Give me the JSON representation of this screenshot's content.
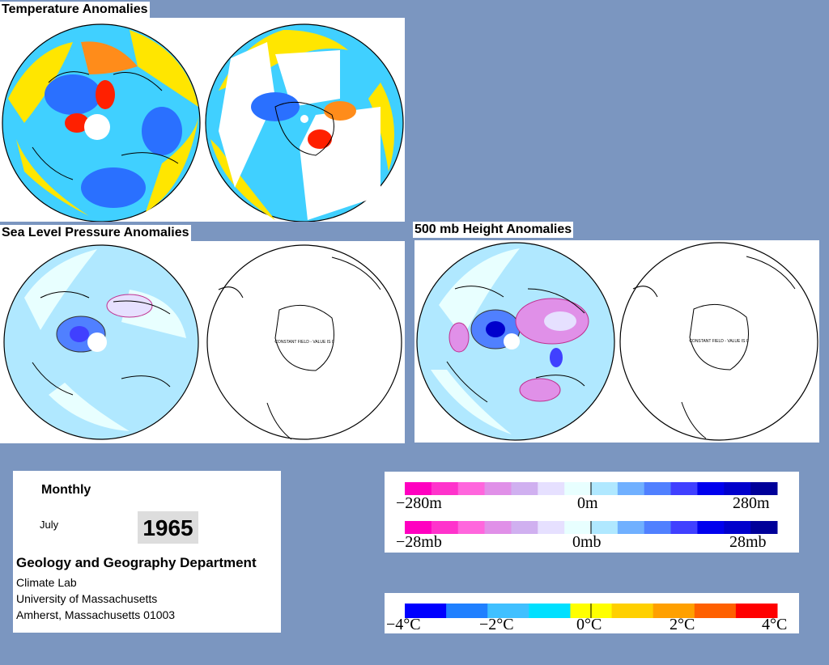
{
  "titles": {
    "temperature": "Temperature Anomalies",
    "slp": "Sea Level Pressure Anomalies",
    "height500": "500 mb Height Anomalies"
  },
  "map_text": {
    "constant_field_slp": "CONSTANT FIELD - VALUE IS 0",
    "constant_field_500": "CONSTANT FIELD - VALUE IS 0"
  },
  "info": {
    "period": "Monthly",
    "month": "July",
    "year": "1965",
    "department": "Geology and Geography Department",
    "lab": "Climate Lab",
    "university": "University of Massachusetts",
    "city": "Amherst, Massachusetts 01003"
  },
  "legend_height": {
    "labels": [
      "−280m",
      "0m",
      "280m"
    ],
    "colors": [
      "#ff00c0",
      "#ff33cc",
      "#ff66dd",
      "#e090e8",
      "#d0b0f0",
      "#e6e0ff",
      "#e8ffff",
      "#b0e8ff",
      "#70b0ff",
      "#5080ff",
      "#4040ff",
      "#0000ee",
      "#0000cc",
      "#000099"
    ]
  },
  "legend_pressure": {
    "labels": [
      "−28mb",
      "0mb",
      "28mb"
    ],
    "colors": [
      "#ff00c0",
      "#ff33cc",
      "#ff66dd",
      "#e090e8",
      "#d0b0f0",
      "#e6e0ff",
      "#e8ffff",
      "#b0e8ff",
      "#70b0ff",
      "#5080ff",
      "#4040ff",
      "#0000ee",
      "#0000cc",
      "#000099"
    ]
  },
  "legend_temperature": {
    "labels": [
      "−4°C",
      "−2°C",
      "0°C",
      "2°C",
      "4°C"
    ],
    "colors": [
      "#0000ff",
      "#2080ff",
      "#40c0ff",
      "#00e0ff",
      "#ffff00",
      "#ffd000",
      "#ffa000",
      "#ff6000",
      "#ff0000"
    ]
  }
}
